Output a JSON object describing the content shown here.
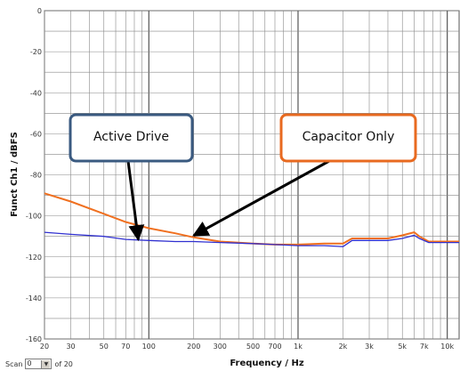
{
  "chart_data": {
    "type": "line",
    "title": "",
    "xlabel": "Frequency / Hz",
    "ylabel": "Funct Ch1 / dBFS",
    "x_scale": "log",
    "xlim": [
      20,
      12000
    ],
    "ylim": [
      -160,
      0
    ],
    "grid": true,
    "x_tick_labels": [
      {
        "value": 20,
        "label": "20"
      },
      {
        "value": 30,
        "label": "30"
      },
      {
        "value": 50,
        "label": "50"
      },
      {
        "value": 70,
        "label": "70"
      },
      {
        "value": 100,
        "label": "100"
      },
      {
        "value": 200,
        "label": "200"
      },
      {
        "value": 300,
        "label": "300"
      },
      {
        "value": 500,
        "label": "500"
      },
      {
        "value": 700,
        "label": "700"
      },
      {
        "value": 1000,
        "label": "1k"
      },
      {
        "value": 2000,
        "label": "2k"
      },
      {
        "value": 3000,
        "label": "3k"
      },
      {
        "value": 5000,
        "label": "5k"
      },
      {
        "value": 7000,
        "label": "7k"
      },
      {
        "value": 10000,
        "label": "10k"
      }
    ],
    "y_tick_labels": [
      {
        "value": 0,
        "label": "0"
      },
      {
        "value": -20,
        "label": "-20"
      },
      {
        "value": -40,
        "label": "-40"
      },
      {
        "value": -60,
        "label": "-60"
      },
      {
        "value": -80,
        "label": "-80"
      },
      {
        "value": -100,
        "label": "-100"
      },
      {
        "value": -120,
        "label": "-120"
      },
      {
        "value": -140,
        "label": "-140"
      },
      {
        "value": -160,
        "label": "-160"
      }
    ],
    "series": [
      {
        "color": "#f07020",
        "x": [
          20,
          30,
          50,
          70,
          100,
          150,
          200,
          300,
          500,
          700,
          1000,
          1500,
          2000,
          2300,
          3000,
          4000,
          5000,
          6000,
          6500,
          7500,
          10000,
          12000
        ],
        "y": [
          -89,
          -93,
          -99,
          -103,
          -106,
          -108.5,
          -110.5,
          -112.5,
          -113.5,
          -114,
          -114,
          -113.5,
          -113.5,
          -111,
          -111,
          -111,
          -109.5,
          -108,
          -110,
          -112.5,
          -112.5,
          -112.5
        ]
      },
      {
        "color": "#3030d0",
        "x": [
          20,
          30,
          50,
          70,
          100,
          150,
          200,
          300,
          500,
          700,
          1000,
          1500,
          2000,
          2300,
          3000,
          4000,
          5000,
          6000,
          6500,
          7500,
          10000,
          12000
        ],
        "y": [
          -108,
          -109,
          -110,
          -111.5,
          -112,
          -112.5,
          -112.5,
          -113,
          -113.5,
          -114,
          -114.5,
          -114.5,
          -115,
          -112,
          -112,
          -112,
          -111,
          -109.5,
          -111,
          -113,
          -113,
          -113
        ]
      }
    ],
    "annotations": [
      {
        "text": "Active Drive",
        "border_color": "#3a5a80",
        "target": {
          "x": 85,
          "y": -112
        }
      },
      {
        "text": "Capacitor Only",
        "border_color": "#e86a20",
        "target": {
          "x": 200,
          "y": -110
        }
      }
    ]
  },
  "scan_control": {
    "label": "Scan",
    "value": "0",
    "arrow": "▼",
    "of_label": "of 20"
  }
}
